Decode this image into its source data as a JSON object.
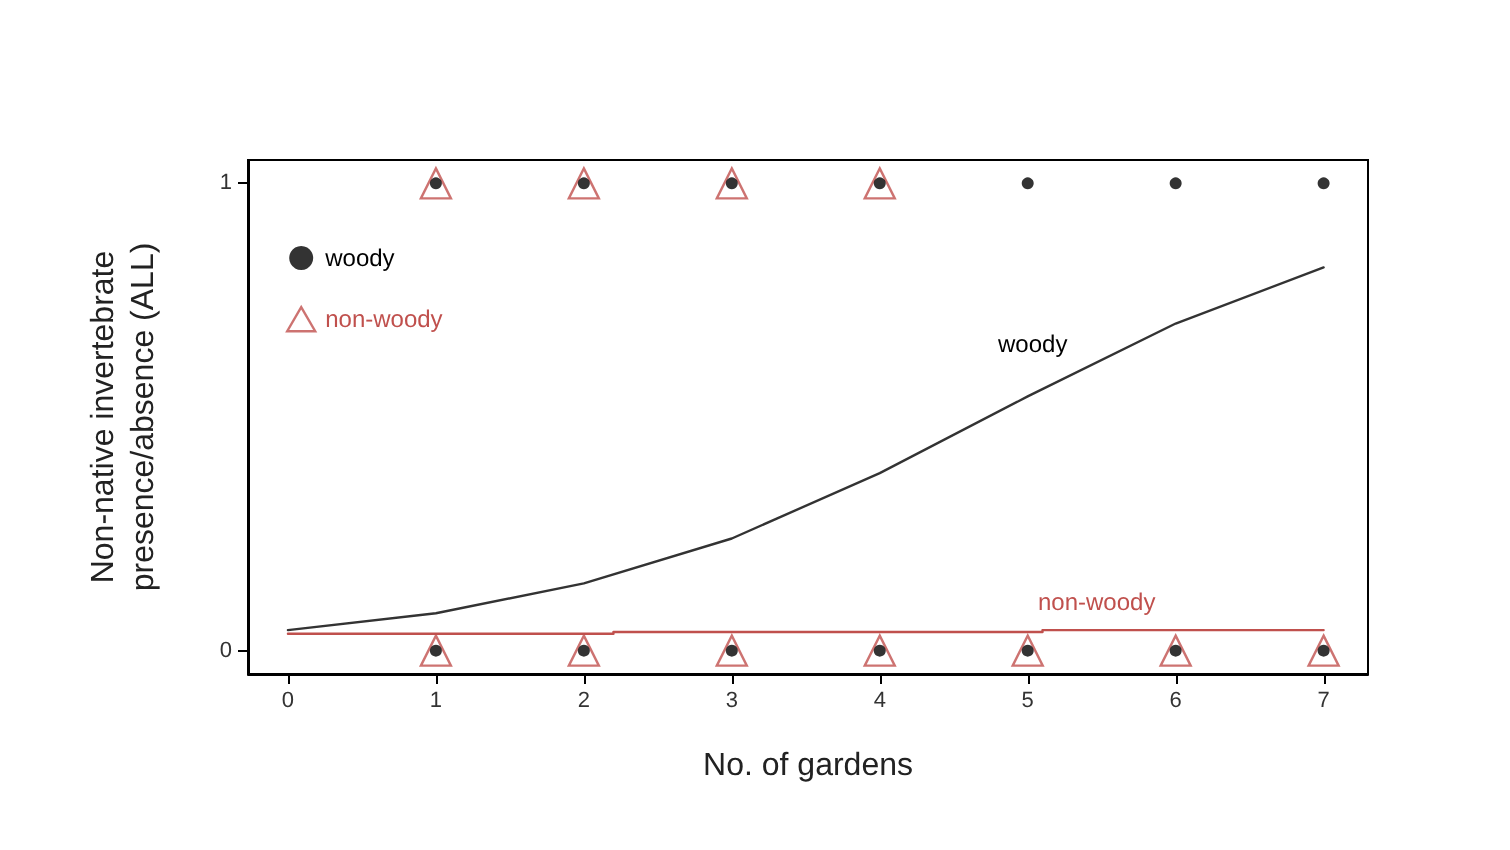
{
  "chart_data": {
    "type": "scatter",
    "xlabel": "No. of gardens",
    "ylabel": "Non-native invertebrate\npresence/absence (ALL)",
    "xlim": [
      -0.27,
      7.3
    ],
    "ylim": [
      -0.05,
      1.05
    ],
    "xticks": [
      0,
      1,
      2,
      3,
      4,
      5,
      6,
      7
    ],
    "yticks": [
      0,
      1
    ],
    "grid": false,
    "legend": "top left",
    "series": [
      {
        "name": "woody",
        "marker": "circle",
        "color": "#000000",
        "x": [
          1,
          2,
          3,
          4,
          5,
          6,
          7,
          1,
          2,
          3,
          4,
          5,
          6,
          7
        ],
        "values": [
          1,
          1,
          1,
          1,
          1,
          1,
          1,
          0,
          0,
          0,
          0,
          0,
          0,
          0
        ]
      },
      {
        "name": "non-woody",
        "marker": "triangle",
        "color": "#c0504d",
        "x": [
          1,
          2,
          3,
          4,
          1,
          2,
          3,
          4,
          5,
          6,
          7
        ],
        "values": [
          1,
          1,
          1,
          1,
          0,
          0,
          0,
          0,
          0,
          0,
          0
        ]
      },
      {
        "type": "line",
        "marker": "none",
        "color": "#333333",
        "x": [
          0,
          1,
          2,
          3,
          4,
          5,
          6,
          7
        ],
        "values": [
          0.044,
          0.08,
          0.144,
          0.24,
          0.38,
          0.544,
          0.7,
          0.82
        ]
      },
      {
        "type": "line",
        "marker": "none",
        "color": "#c0504d",
        "x": [
          0,
          2.2,
          2.2,
          5.1,
          5.1,
          7
        ],
        "values": [
          0.036,
          0.036,
          0.04,
          0.04,
          0.044,
          0.044
        ]
      }
    ],
    "annotations": [
      "woody",
      "non-woody"
    ]
  }
}
